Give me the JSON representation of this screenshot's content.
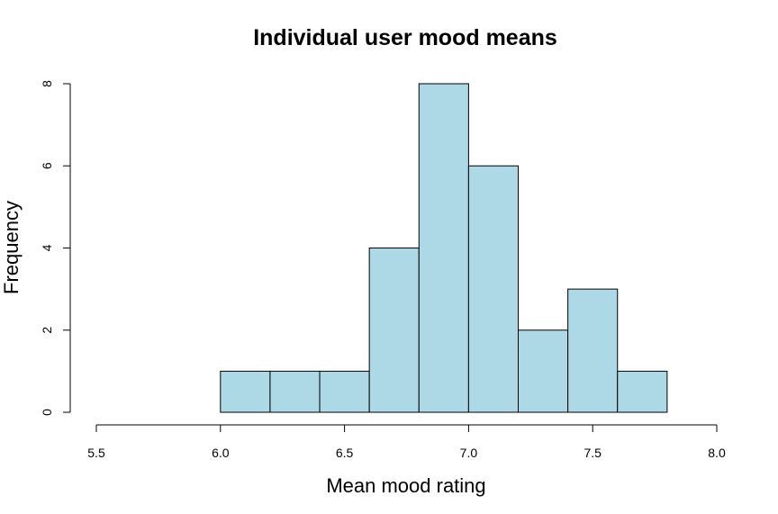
{
  "chart_data": {
    "type": "bar",
    "title": "Individual user mood means",
    "xlabel": "Mean mood rating",
    "ylabel": "Frequency",
    "bin_edges": [
      6.0,
      6.2,
      6.4,
      6.6,
      6.8,
      7.0,
      7.2,
      7.4,
      7.6,
      7.8
    ],
    "values": [
      1,
      1,
      1,
      4,
      8,
      6,
      2,
      3,
      1
    ],
    "xlim": [
      5.5,
      8.0
    ],
    "ylim": [
      0,
      8
    ],
    "xticks": [
      "5.5",
      "6.0",
      "6.5",
      "7.0",
      "7.5",
      "8.0"
    ],
    "yticks": [
      "0",
      "2",
      "4",
      "6",
      "8"
    ],
    "bar_color": "#add8e6",
    "grid": false,
    "legend": "none"
  }
}
